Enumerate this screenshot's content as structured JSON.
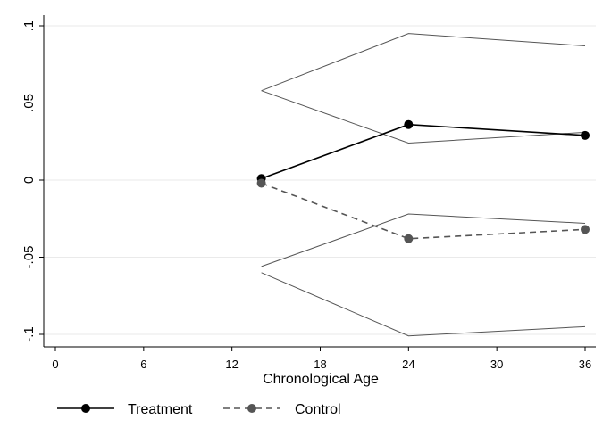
{
  "chart_data": {
    "type": "line",
    "xlabel": "Chronological Age",
    "ylabel": "",
    "xlim": [
      0,
      36
    ],
    "ylim": [
      -0.1,
      0.1
    ],
    "xticks": [
      0,
      6,
      12,
      18,
      24,
      30,
      36
    ],
    "xtick_labels": [
      "0",
      "6",
      "12",
      "18",
      "24",
      "30",
      "36"
    ],
    "yticks": [
      -0.1,
      -0.05,
      0,
      0.05,
      0.1
    ],
    "ytick_labels": [
      "-.1",
      "-.05",
      "0",
      ".05",
      ".1"
    ],
    "grid": "horizontal",
    "legend_position": "bottom",
    "series": [
      {
        "name": "Treatment",
        "style": "solid",
        "marker": "circle",
        "color": "#000000",
        "x": [
          14,
          24,
          36
        ],
        "y": [
          0.001,
          0.036,
          0.029
        ],
        "ci_upper": [
          0.058,
          0.095,
          0.087
        ],
        "ci_lower": [
          0.058,
          0.024,
          0.031
        ]
      },
      {
        "name": "Control",
        "style": "dashed",
        "marker": "circle",
        "color": "#555555",
        "x": [
          14,
          24,
          36
        ],
        "y": [
          -0.002,
          -0.038,
          -0.032
        ],
        "ci_upper": [
          -0.056,
          -0.022,
          -0.028
        ],
        "ci_lower": [
          -0.06,
          -0.101,
          -0.095
        ]
      }
    ]
  }
}
